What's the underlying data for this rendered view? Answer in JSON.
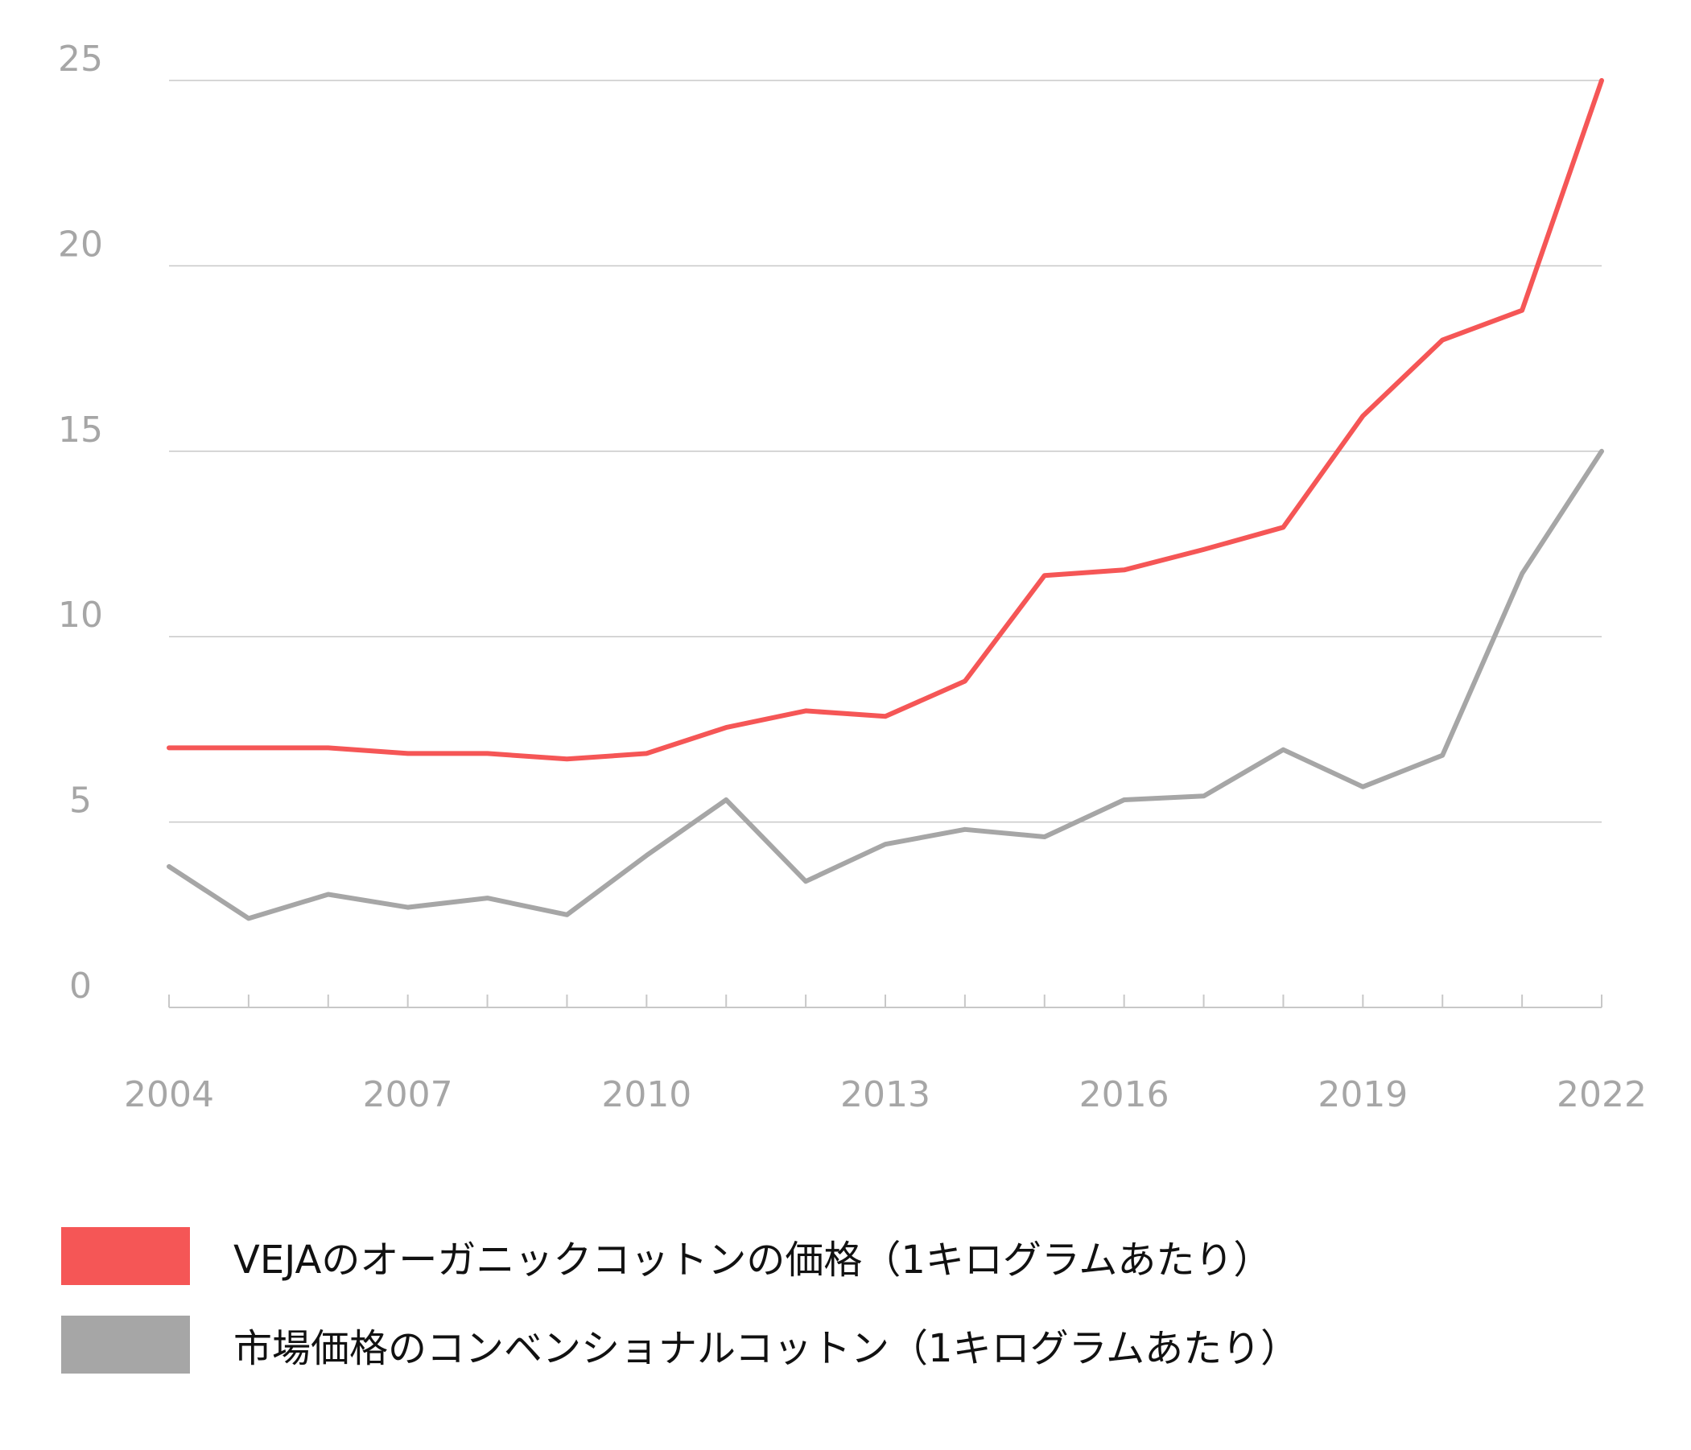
{
  "chart_data": {
    "type": "line",
    "x": [
      2004,
      2005,
      2006,
      2007,
      2008,
      2009,
      2010,
      2011,
      2012,
      2013,
      2014,
      2015,
      2016,
      2017,
      2018,
      2019,
      2020,
      2021,
      2022
    ],
    "x_tick_labels": [
      "2004",
      "2007",
      "2010",
      "2013",
      "2016",
      "2019",
      "2022"
    ],
    "y_tick_labels": [
      "0",
      "5",
      "10",
      "15",
      "20",
      "25"
    ],
    "ylim": [
      0,
      25
    ],
    "xlim": [
      2004,
      2022
    ],
    "grid": true,
    "legend_position": "bottom",
    "series": [
      {
        "name": "VEJAのオーガニックコットンの価格（1キログラムあたり）",
        "color": "#f55656",
        "values": [
          7.0,
          7.0,
          7.0,
          6.85,
          6.85,
          6.7,
          6.85,
          7.55,
          8.0,
          7.85,
          8.8,
          11.65,
          11.8,
          12.35,
          12.95,
          15.95,
          18.0,
          18.8,
          25.0
        ]
      },
      {
        "name": "市場価格のコンベンショナルコットン（1キログラムあたり）",
        "color": "#a6a6a6",
        "values": [
          3.8,
          2.4,
          3.05,
          2.7,
          2.95,
          2.5,
          4.1,
          5.6,
          3.4,
          4.4,
          4.8,
          4.6,
          5.6,
          5.7,
          6.95,
          5.95,
          6.8,
          11.7,
          15.0
        ]
      }
    ]
  }
}
